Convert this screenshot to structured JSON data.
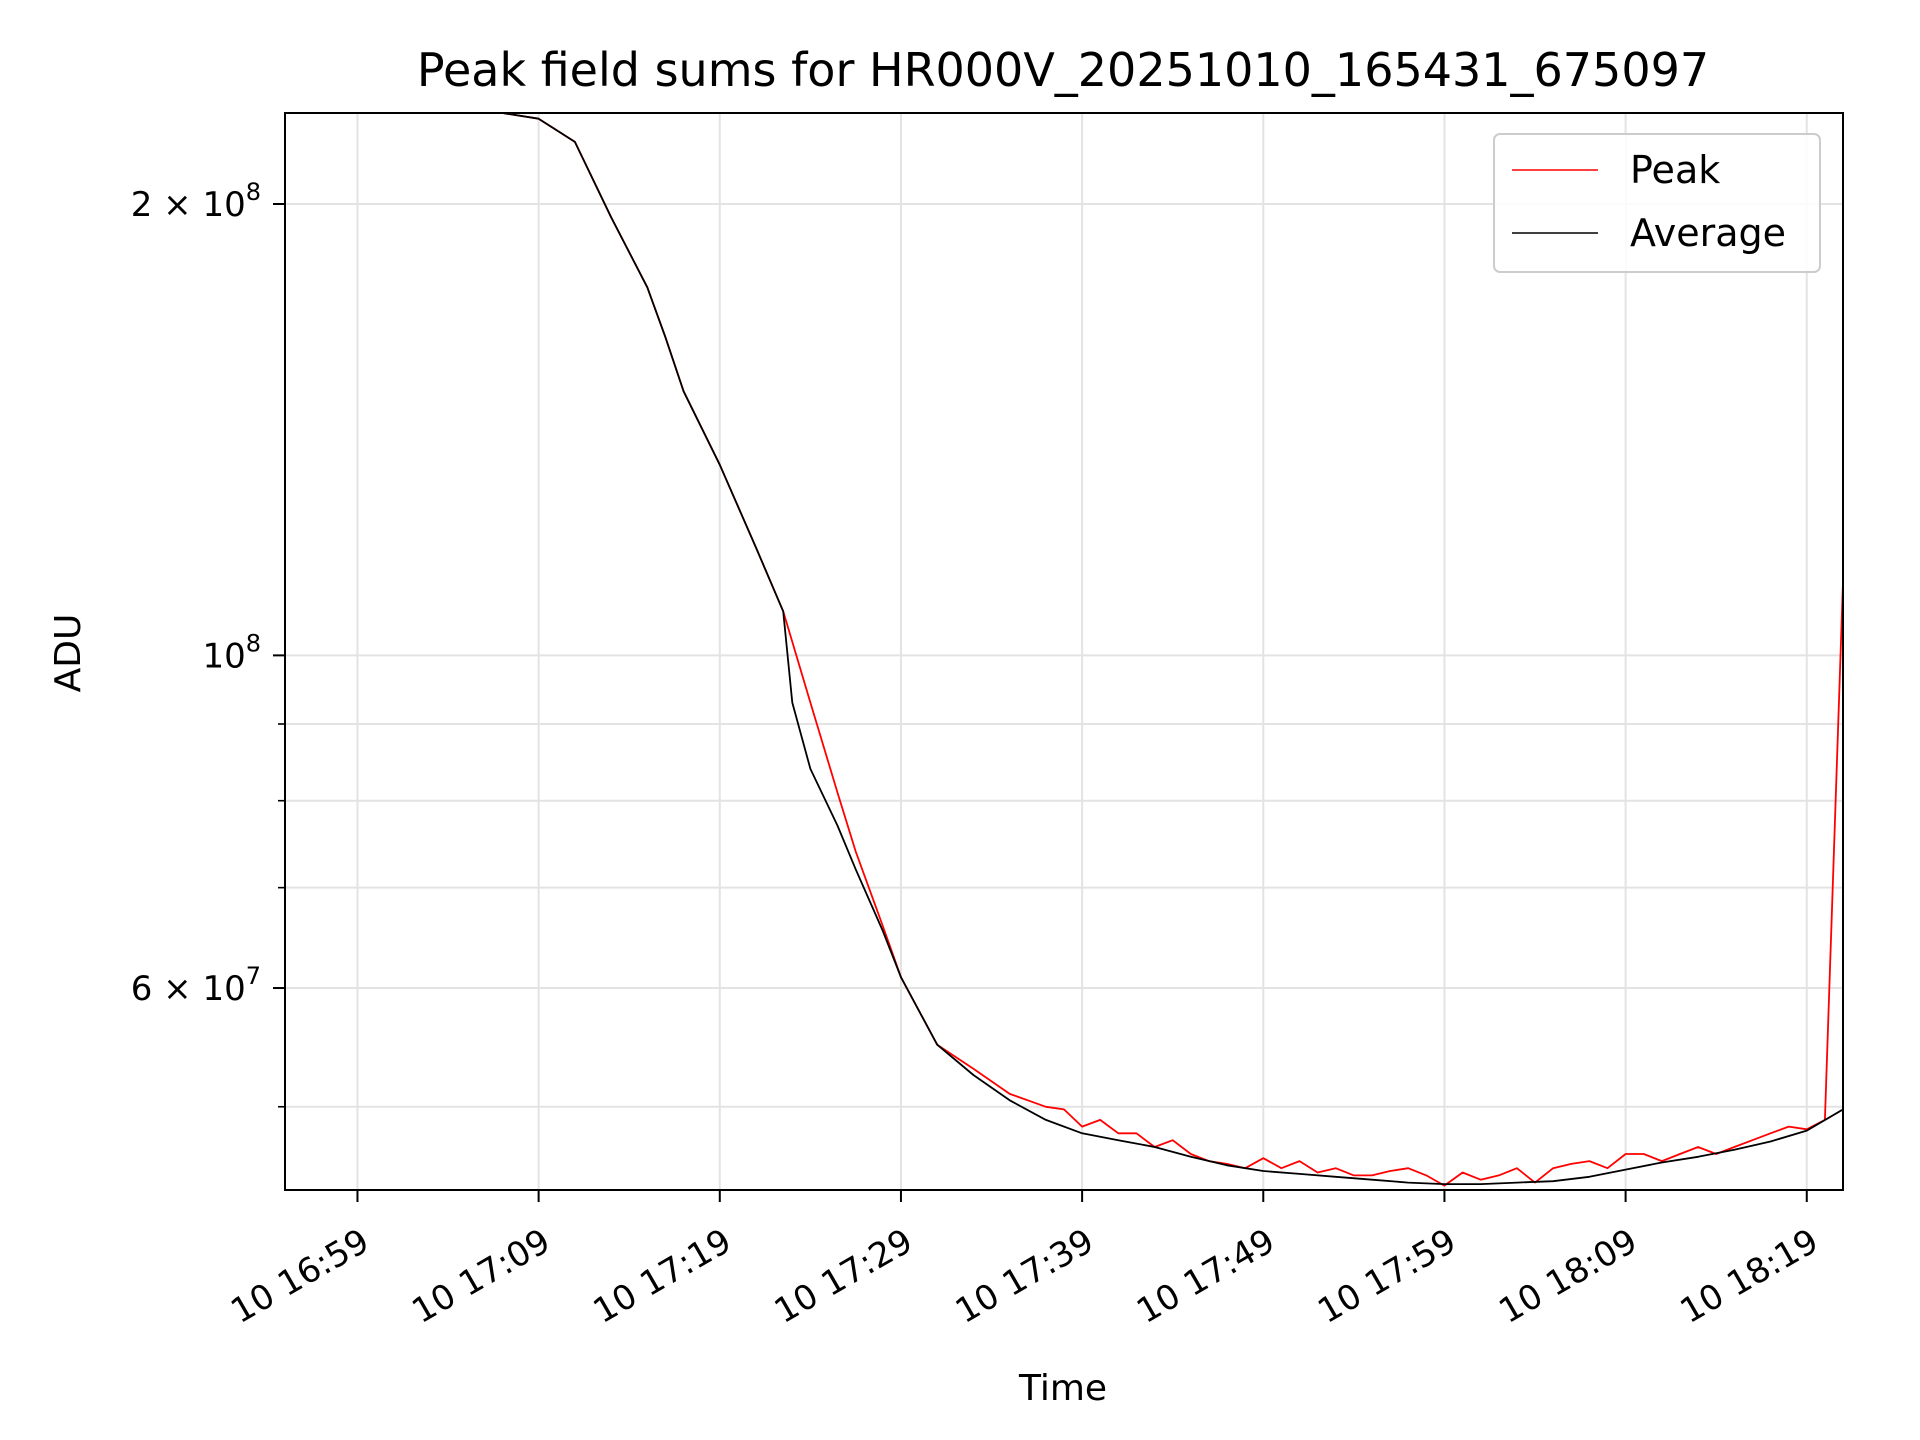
{
  "chart_data": {
    "type": "line",
    "title": "Peak field sums for HR000V_20251010_165431_675097",
    "xlabel": "Time",
    "ylabel": "ADU",
    "y_scale": "log",
    "ylim": [
      44000000,
      230000000
    ],
    "xlim": [
      "10 16:55",
      "10 18:21"
    ],
    "grid": true,
    "legend_position": "top-right",
    "x_ticks": [
      "10 16:59",
      "10 17:09",
      "10 17:19",
      "10 17:29",
      "10 17:39",
      "10 17:49",
      "10 17:59",
      "10 18:09",
      "10 18:19"
    ],
    "y_ticks": [
      {
        "value": 200000000,
        "label": "2 × 10^8",
        "mantissa": "2 × 10",
        "exponent": "8"
      },
      {
        "value": 100000000,
        "label": "10^8",
        "mantissa": "10",
        "exponent": "8"
      },
      {
        "value": 60000000,
        "label": "6 × 10^7",
        "mantissa": "6 × 10",
        "exponent": "7"
      }
    ],
    "y_minor_ticks": [
      50000000,
      70000000,
      80000000,
      90000000
    ],
    "series": [
      {
        "name": "Peak",
        "color": "#ff0000",
        "x": [
          "10 16:58:00",
          "10 17:07:00",
          "10 17:09:00",
          "10 17:11:00",
          "10 17:13:00",
          "10 17:15:00",
          "10 17:16:00",
          "10 17:17:00",
          "10 17:19:00",
          "10 17:21:00",
          "10 17:22:30",
          "10 17:24:00",
          "10 17:25:30",
          "10 17:26:30",
          "10 17:28:00",
          "10 17:29:00",
          "10 17:31:00",
          "10 17:33:00",
          "10 17:35:00",
          "10 17:36:00",
          "10 17:37:00",
          "10 17:38:00",
          "10 17:39:00",
          "10 17:40:00",
          "10 17:41:00",
          "10 17:42:00",
          "10 17:43:00",
          "10 17:44:00",
          "10 17:45:00",
          "10 17:46:00",
          "10 17:47:00",
          "10 17:48:00",
          "10 17:49:00",
          "10 17:50:00",
          "10 17:51:00",
          "10 17:52:00",
          "10 17:53:00",
          "10 17:54:00",
          "10 17:55:00",
          "10 17:56:00",
          "10 17:57:00",
          "10 17:58:00",
          "10 17:59:00",
          "10 18:00:00",
          "10 18:01:00",
          "10 18:02:00",
          "10 18:03:00",
          "10 18:04:00",
          "10 18:05:00",
          "10 18:06:00",
          "10 18:07:00",
          "10 18:08:00",
          "10 18:09:00",
          "10 18:10:00",
          "10 18:11:00",
          "10 18:12:00",
          "10 18:13:00",
          "10 18:14:00",
          "10 18:15:00",
          "10 18:16:00",
          "10 18:17:00",
          "10 18:18:00",
          "10 18:19:00",
          "10 18:20:00",
          "10 18:21:00"
        ],
        "values": [
          230000000,
          230000000,
          228000000,
          220000000,
          196000000,
          176000000,
          163000000,
          150000000,
          134000000,
          118000000,
          107000000,
          93000000,
          81000000,
          74000000,
          66000000,
          61000000,
          55000000,
          53000000,
          51000000,
          50500000,
          50000000,
          49800000,
          48500000,
          49000000,
          48000000,
          48000000,
          47000000,
          47500000,
          46500000,
          46000000,
          45800000,
          45500000,
          46200000,
          45500000,
          46000000,
          45200000,
          45500000,
          45000000,
          45000000,
          45300000,
          45500000,
          45000000,
          44300000,
          45200000,
          44700000,
          45000000,
          45500000,
          44500000,
          45500000,
          45800000,
          46000000,
          45500000,
          46500000,
          46500000,
          46000000,
          46500000,
          47000000,
          46500000,
          47000000,
          47500000,
          48000000,
          48500000,
          48300000,
          49000000,
          112000000
        ]
      },
      {
        "name": "Average",
        "color": "#000000",
        "x": [
          "10 16:58:00",
          "10 17:07:00",
          "10 17:09:00",
          "10 17:11:00",
          "10 17:13:00",
          "10 17:15:00",
          "10 17:16:00",
          "10 17:17:00",
          "10 17:19:00",
          "10 17:21:00",
          "10 17:22:30",
          "10 17:23:00",
          "10 17:24:00",
          "10 17:25:30",
          "10 17:26:30",
          "10 17:28:00",
          "10 17:29:00",
          "10 17:31:00",
          "10 17:33:00",
          "10 17:35:00",
          "10 17:37:00",
          "10 17:39:00",
          "10 17:41:00",
          "10 17:43:00",
          "10 17:45:00",
          "10 17:47:00",
          "10 17:49:00",
          "10 17:51:00",
          "10 17:53:00",
          "10 17:55:00",
          "10 17:57:00",
          "10 17:59:00",
          "10 18:01:00",
          "10 18:03:00",
          "10 18:05:00",
          "10 18:07:00",
          "10 18:09:00",
          "10 18:11:00",
          "10 18:13:00",
          "10 18:15:00",
          "10 18:17:00",
          "10 18:19:00",
          "10 18:21:00"
        ],
        "values": [
          230000000,
          230000000,
          228000000,
          220000000,
          196000000,
          176000000,
          163000000,
          150000000,
          134000000,
          118000000,
          107000000,
          93000000,
          84000000,
          77000000,
          72000000,
          65500000,
          61000000,
          55000000,
          52500000,
          50500000,
          49000000,
          48000000,
          47500000,
          47000000,
          46300000,
          45700000,
          45300000,
          45100000,
          44900000,
          44700000,
          44500000,
          44400000,
          44400000,
          44500000,
          44600000,
          44900000,
          45400000,
          45900000,
          46300000,
          46800000,
          47400000,
          48200000,
          49800000
        ]
      }
    ]
  }
}
